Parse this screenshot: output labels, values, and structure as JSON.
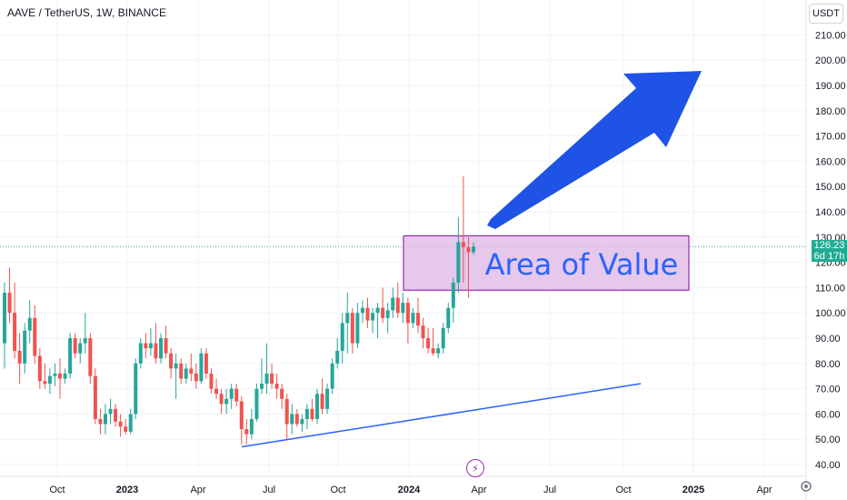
{
  "header": {
    "title": "AAVE / TetherUS, 1W, BINANCE"
  },
  "axis": {
    "currency": "USDT"
  },
  "price_badge": {
    "price": "126.23",
    "countdown": "6d 17h"
  },
  "annotations": {
    "area_label": "Area of Value"
  },
  "icons": {
    "events": "lightning-icon",
    "settings": "gear-icon"
  },
  "colors": {
    "up": "#26a69a",
    "down": "#ef5350",
    "trendline": "#2962ff",
    "zone_fill": "#e1bee7",
    "zone_border": "#9c27b0",
    "arrow": "#1e53e5"
  },
  "chart_data": {
    "type": "candlestick",
    "ylim": [
      36,
      220
    ],
    "y_ticks": [
      40,
      50,
      60,
      70,
      80,
      90,
      100,
      110,
      120,
      130,
      140,
      150,
      160,
      170,
      180,
      190,
      200,
      210
    ],
    "x_labels": [
      "Oct",
      "2023",
      "Apr",
      "Jul",
      "Oct",
      "2024",
      "Apr",
      "Jul",
      "Oct",
      "2025",
      "Apr"
    ],
    "last_price": 126.23,
    "candles": [
      {
        "o": 88,
        "h": 112,
        "l": 78,
        "c": 108
      },
      {
        "o": 108,
        "h": 118,
        "l": 96,
        "c": 100
      },
      {
        "o": 100,
        "h": 112,
        "l": 82,
        "c": 85
      },
      {
        "o": 85,
        "h": 92,
        "l": 72,
        "c": 80
      },
      {
        "o": 80,
        "h": 96,
        "l": 76,
        "c": 93
      },
      {
        "o": 93,
        "h": 105,
        "l": 88,
        "c": 98
      },
      {
        "o": 98,
        "h": 103,
        "l": 80,
        "c": 83
      },
      {
        "o": 83,
        "h": 86,
        "l": 70,
        "c": 73
      },
      {
        "o": 73,
        "h": 80,
        "l": 70,
        "c": 72
      },
      {
        "o": 72,
        "h": 78,
        "l": 68,
        "c": 75
      },
      {
        "o": 75,
        "h": 80,
        "l": 71,
        "c": 76
      },
      {
        "o": 76,
        "h": 82,
        "l": 66,
        "c": 74
      },
      {
        "o": 74,
        "h": 78,
        "l": 72,
        "c": 76
      },
      {
        "o": 76,
        "h": 92,
        "l": 74,
        "c": 90
      },
      {
        "o": 90,
        "h": 92,
        "l": 82,
        "c": 84
      },
      {
        "o": 84,
        "h": 90,
        "l": 80,
        "c": 88
      },
      {
        "o": 88,
        "h": 100,
        "l": 84,
        "c": 90
      },
      {
        "o": 90,
        "h": 92,
        "l": 72,
        "c": 75
      },
      {
        "o": 75,
        "h": 78,
        "l": 56,
        "c": 58
      },
      {
        "o": 58,
        "h": 62,
        "l": 52,
        "c": 56
      },
      {
        "o": 56,
        "h": 64,
        "l": 52,
        "c": 60
      },
      {
        "o": 60,
        "h": 66,
        "l": 56,
        "c": 62
      },
      {
        "o": 62,
        "h": 64,
        "l": 55,
        "c": 57
      },
      {
        "o": 57,
        "h": 60,
        "l": 51,
        "c": 55
      },
      {
        "o": 55,
        "h": 58,
        "l": 52,
        "c": 53
      },
      {
        "o": 53,
        "h": 62,
        "l": 52,
        "c": 60
      },
      {
        "o": 60,
        "h": 82,
        "l": 58,
        "c": 80
      },
      {
        "o": 80,
        "h": 90,
        "l": 78,
        "c": 88
      },
      {
        "o": 88,
        "h": 92,
        "l": 82,
        "c": 86
      },
      {
        "o": 86,
        "h": 94,
        "l": 83,
        "c": 88
      },
      {
        "o": 88,
        "h": 96,
        "l": 80,
        "c": 82
      },
      {
        "o": 82,
        "h": 92,
        "l": 80,
        "c": 90
      },
      {
        "o": 90,
        "h": 95,
        "l": 82,
        "c": 84
      },
      {
        "o": 84,
        "h": 86,
        "l": 74,
        "c": 78
      },
      {
        "o": 78,
        "h": 84,
        "l": 66,
        "c": 80
      },
      {
        "o": 80,
        "h": 82,
        "l": 72,
        "c": 74
      },
      {
        "o": 74,
        "h": 80,
        "l": 72,
        "c": 78
      },
      {
        "o": 78,
        "h": 84,
        "l": 73,
        "c": 76
      },
      {
        "o": 76,
        "h": 80,
        "l": 70,
        "c": 73
      },
      {
        "o": 73,
        "h": 86,
        "l": 72,
        "c": 84
      },
      {
        "o": 84,
        "h": 86,
        "l": 74,
        "c": 76
      },
      {
        "o": 76,
        "h": 78,
        "l": 68,
        "c": 70
      },
      {
        "o": 70,
        "h": 74,
        "l": 66,
        "c": 68
      },
      {
        "o": 68,
        "h": 70,
        "l": 60,
        "c": 64
      },
      {
        "o": 64,
        "h": 70,
        "l": 60,
        "c": 66
      },
      {
        "o": 66,
        "h": 72,
        "l": 62,
        "c": 70
      },
      {
        "o": 70,
        "h": 72,
        "l": 63,
        "c": 65
      },
      {
        "o": 65,
        "h": 67,
        "l": 48,
        "c": 54
      },
      {
        "o": 54,
        "h": 58,
        "l": 48,
        "c": 52
      },
      {
        "o": 52,
        "h": 62,
        "l": 50,
        "c": 58
      },
      {
        "o": 58,
        "h": 72,
        "l": 57,
        "c": 70
      },
      {
        "o": 70,
        "h": 82,
        "l": 68,
        "c": 72
      },
      {
        "o": 72,
        "h": 88,
        "l": 68,
        "c": 76
      },
      {
        "o": 76,
        "h": 80,
        "l": 70,
        "c": 72
      },
      {
        "o": 72,
        "h": 76,
        "l": 66,
        "c": 70
      },
      {
        "o": 70,
        "h": 72,
        "l": 62,
        "c": 66
      },
      {
        "o": 66,
        "h": 68,
        "l": 50,
        "c": 56
      },
      {
        "o": 56,
        "h": 64,
        "l": 52,
        "c": 60
      },
      {
        "o": 60,
        "h": 62,
        "l": 55,
        "c": 56
      },
      {
        "o": 56,
        "h": 60,
        "l": 53,
        "c": 58
      },
      {
        "o": 58,
        "h": 64,
        "l": 54,
        "c": 62
      },
      {
        "o": 62,
        "h": 66,
        "l": 57,
        "c": 58
      },
      {
        "o": 58,
        "h": 70,
        "l": 56,
        "c": 68
      },
      {
        "o": 68,
        "h": 74,
        "l": 60,
        "c": 62
      },
      {
        "o": 62,
        "h": 72,
        "l": 60,
        "c": 70
      },
      {
        "o": 70,
        "h": 82,
        "l": 68,
        "c": 80
      },
      {
        "o": 80,
        "h": 90,
        "l": 78,
        "c": 85
      },
      {
        "o": 85,
        "h": 100,
        "l": 80,
        "c": 96
      },
      {
        "o": 96,
        "h": 108,
        "l": 84,
        "c": 100
      },
      {
        "o": 100,
        "h": 102,
        "l": 84,
        "c": 88
      },
      {
        "o": 88,
        "h": 104,
        "l": 86,
        "c": 100
      },
      {
        "o": 100,
        "h": 105,
        "l": 96,
        "c": 102
      },
      {
        "o": 102,
        "h": 106,
        "l": 94,
        "c": 97
      },
      {
        "o": 97,
        "h": 102,
        "l": 92,
        "c": 100
      },
      {
        "o": 100,
        "h": 104,
        "l": 90,
        "c": 102
      },
      {
        "o": 102,
        "h": 110,
        "l": 96,
        "c": 98
      },
      {
        "o": 98,
        "h": 104,
        "l": 92,
        "c": 101
      },
      {
        "o": 101,
        "h": 110,
        "l": 98,
        "c": 106
      },
      {
        "o": 106,
        "h": 112,
        "l": 98,
        "c": 100
      },
      {
        "o": 100,
        "h": 108,
        "l": 96,
        "c": 104
      },
      {
        "o": 104,
        "h": 106,
        "l": 88,
        "c": 96
      },
      {
        "o": 96,
        "h": 102,
        "l": 94,
        "c": 100
      },
      {
        "o": 100,
        "h": 106,
        "l": 92,
        "c": 95
      },
      {
        "o": 95,
        "h": 98,
        "l": 86,
        "c": 90
      },
      {
        "o": 90,
        "h": 94,
        "l": 84,
        "c": 86
      },
      {
        "o": 86,
        "h": 94,
        "l": 83,
        "c": 84
      },
      {
        "o": 84,
        "h": 88,
        "l": 82,
        "c": 86
      },
      {
        "o": 86,
        "h": 96,
        "l": 84,
        "c": 94
      },
      {
        "o": 94,
        "h": 104,
        "l": 92,
        "c": 102
      },
      {
        "o": 102,
        "h": 114,
        "l": 96,
        "c": 112
      },
      {
        "o": 112,
        "h": 138,
        "l": 108,
        "c": 128
      },
      {
        "o": 128,
        "h": 154,
        "l": 112,
        "c": 126
      },
      {
        "o": 126,
        "h": 130,
        "l": 106,
        "c": 124
      },
      {
        "o": 124,
        "h": 128,
        "l": 123,
        "c": 126.23
      }
    ]
  }
}
